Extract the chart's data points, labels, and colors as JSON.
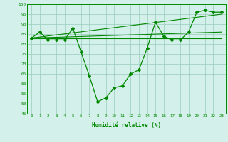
{
  "line1_x": [
    0,
    1,
    2,
    3,
    4,
    5,
    6,
    7,
    8,
    9,
    10,
    11,
    12,
    13,
    14,
    15,
    16,
    17,
    18,
    19,
    20,
    21,
    22,
    23
  ],
  "line1_y": [
    83,
    86,
    82,
    82,
    82,
    88,
    76,
    64,
    51,
    53,
    58,
    59,
    65,
    67,
    78,
    91,
    84,
    82,
    82,
    86,
    96,
    97,
    96,
    96
  ],
  "line2_x": [
    0,
    23
  ],
  "line2_y": [
    83,
    83
  ],
  "line3_x": [
    0,
    23
  ],
  "line3_y": [
    83,
    95
  ],
  "line4_x": [
    0,
    23
  ],
  "line4_y": [
    83,
    86
  ],
  "xlim": [
    -0.5,
    23.5
  ],
  "ylim": [
    45,
    100
  ],
  "yticks": [
    45,
    50,
    55,
    60,
    65,
    70,
    75,
    80,
    85,
    90,
    95,
    100
  ],
  "xticks": [
    0,
    1,
    2,
    3,
    4,
    5,
    6,
    7,
    8,
    9,
    10,
    11,
    12,
    13,
    14,
    15,
    16,
    17,
    18,
    19,
    20,
    21,
    22,
    23
  ],
  "xlabel": "Humidité relative (%)",
  "line_color": "#008800",
  "bg_color": "#d4f0ea",
  "grid_color": "#99ccbb"
}
